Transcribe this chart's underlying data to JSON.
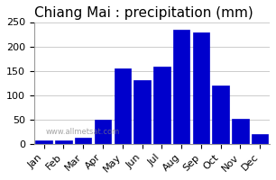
{
  "title": "Chiang Mai : precipitation (mm)",
  "months": [
    "Jan",
    "Feb",
    "Mar",
    "Apr",
    "May",
    "Jun",
    "Jul",
    "Aug",
    "Sep",
    "Oct",
    "Nov",
    "Dec"
  ],
  "rainfall": [
    8,
    8,
    12,
    50,
    155,
    130,
    158,
    235,
    228,
    120,
    52,
    20
  ],
  "bar_color": "#0000CC",
  "bar_edge_color": "#0000CC",
  "background_color": "#ffffff",
  "ylim": [
    0,
    250
  ],
  "yticks": [
    0,
    50,
    100,
    150,
    200,
    250
  ],
  "title_fontsize": 11,
  "tick_fontsize": 8,
  "grid_color": "#cccccc",
  "watermark": "www.allmetsat.com"
}
